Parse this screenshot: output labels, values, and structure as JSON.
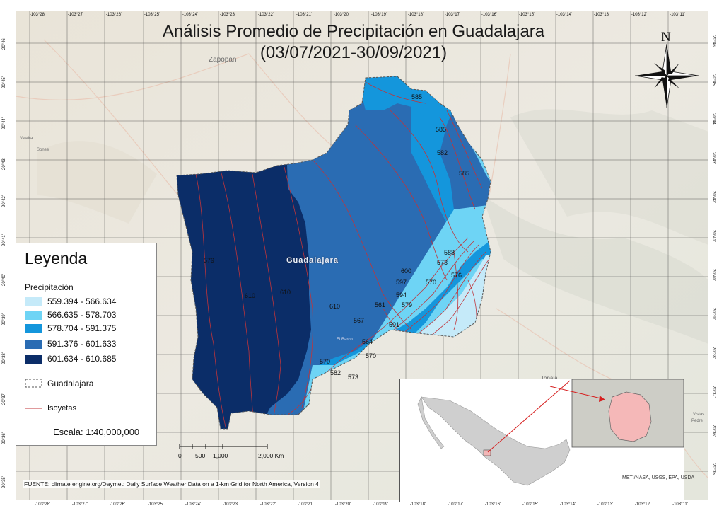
{
  "title": {
    "line1": "Análisis Promedio de Precipitación en Guadalajara",
    "line2": "(03/07/2021-30/09/2021)"
  },
  "north": {
    "label": "N"
  },
  "ticks": {
    "lon": [
      "-103°28'",
      "-103°27'",
      "-103°26'",
      "-103°25'",
      "-103°24'",
      "-103°23'",
      "-103°22'",
      "-103°21'",
      "-103°20'",
      "-103°19'",
      "-103°18'",
      "-103°17'",
      "-103°16'",
      "-103°15'",
      "-103°14'",
      "-103°13'",
      "-103°12'",
      "-103°11'"
    ],
    "lat": [
      "20°46'",
      "20°45'",
      "20°44'",
      "20°43'",
      "20°42'",
      "20°41'",
      "20°40'",
      "20°39'",
      "20°38'",
      "20°37'",
      "20°36'",
      "20°35'"
    ]
  },
  "places": {
    "zapopan": "Zapopan",
    "valeira": "Valeira",
    "sonee": "Sonee",
    "tonala": "Tonalá",
    "vistas": "Vistas",
    "pedre": "Pedre",
    "el_barco": "El Barco",
    "guadalajara": "Guadalajara"
  },
  "isolines": {
    "labels": [
      "585",
      "585",
      "582",
      "585",
      "579",
      "610",
      "610",
      "610",
      "600",
      "597",
      "594",
      "579",
      "570",
      "573",
      "588",
      "576",
      "561",
      "567",
      "591",
      "564",
      "570",
      "582",
      "570",
      "573"
    ]
  },
  "legend": {
    "title": "Leyenda",
    "subtitle": "Precipitación",
    "classes": [
      {
        "label": "559.394 - 566.634",
        "color": "#c5eaf9"
      },
      {
        "label": "566.635 - 578.703",
        "color": "#6ed4f5"
      },
      {
        "label": "578.704 - 591.375",
        "color": "#1496dc"
      },
      {
        "label": "591.376 - 601.633",
        "color": "#2a6cb3"
      },
      {
        "label": "601.634 - 610.685",
        "color": "#0b2d68"
      }
    ],
    "boundary_label": "Guadalajara",
    "isoline_label": "Isoyetas",
    "isoline_color": "#c0343a",
    "scale": "Escala: 1:40,000,000"
  },
  "scalebar": {
    "ticks": [
      "0",
      "500",
      "1,000",
      "2,000 Km"
    ]
  },
  "footer": {
    "source": "FUENTE: climate engine.org/Daymet: Daily Surface Weather Data on a 1-km Grid for North America, Version 4",
    "credit": "METI/NASA, USGS, EPA, USDA"
  }
}
